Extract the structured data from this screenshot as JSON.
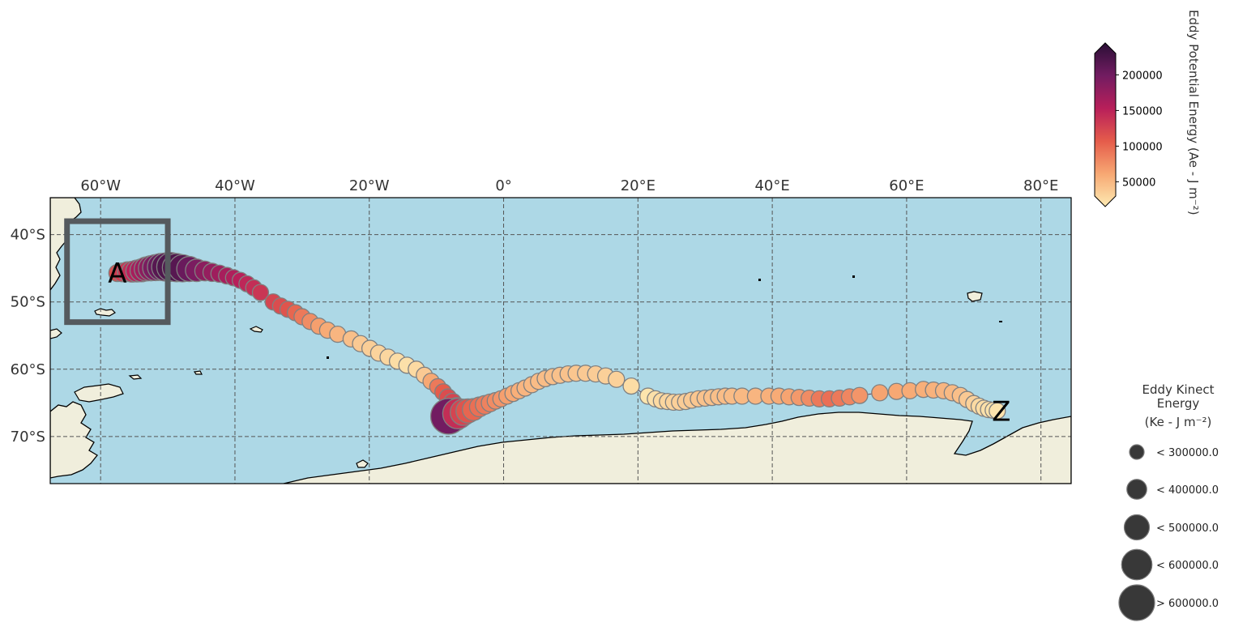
{
  "map": {
    "extent": {
      "lon": [
        -67.5,
        84.5
      ],
      "lat": [
        -77.0,
        -34.5
      ]
    },
    "lon_ticks": [
      {
        "value": -60,
        "label": "60°W"
      },
      {
        "value": -40,
        "label": "40°W"
      },
      {
        "value": -20,
        "label": "20°W"
      },
      {
        "value": 0,
        "label": "0°"
      },
      {
        "value": 20,
        "label": "20°E"
      },
      {
        "value": 40,
        "label": "40°E"
      },
      {
        "value": 60,
        "label": "60°E"
      },
      {
        "value": 80,
        "label": "80°E"
      }
    ],
    "lat_ticks": [
      {
        "value": -40,
        "label": "40°S"
      },
      {
        "value": -50,
        "label": "50°S"
      },
      {
        "value": -60,
        "label": "60°S"
      },
      {
        "value": -70,
        "label": "70°S"
      }
    ],
    "colors": {
      "ocean": "#add8e6",
      "land": "#f0eedc",
      "grid": "#555555",
      "box": "#555a5e",
      "marker_edge": "#808080"
    },
    "start_label": "A",
    "end_label": "Z",
    "region_box": {
      "lon": [
        -65,
        -50
      ],
      "lat": [
        -53,
        -38
      ]
    }
  },
  "colorbar": {
    "label": "Eddy Potential Energy (Ae -  J m⁻²)",
    "range": [
      30000,
      230000
    ],
    "ticks": [
      {
        "value": 50000,
        "label": "50000"
      },
      {
        "value": 100000,
        "label": "100000"
      },
      {
        "value": 150000,
        "label": "150000"
      },
      {
        "value": 200000,
        "label": "200000"
      }
    ],
    "stops": [
      "#fdeab2",
      "#f7a873",
      "#e55c4b",
      "#b81f5a",
      "#721c61",
      "#2a0f36"
    ]
  },
  "size_legend": {
    "title_lines": [
      "Eddy Kinect",
      "Energy",
      "(Ke -  J m⁻²)"
    ],
    "items": [
      {
        "label": "< 300000.0",
        "size": 300000
      },
      {
        "label": "< 400000.0",
        "size": 400000
      },
      {
        "label": "< 500000.0",
        "size": 500000
      },
      {
        "label": "< 600000.0",
        "size": 600000
      },
      {
        "label": "> 600000.0",
        "size": 700000
      }
    ]
  },
  "chart_data": {
    "type": "scatter",
    "x_name": "longitude",
    "y_name": "latitude",
    "points": [
      [
        -57.5,
        -45.7,
        120000,
        350000
      ],
      [
        -56.8,
        -45.6,
        130000,
        380000
      ],
      [
        -56.0,
        -45.5,
        135000,
        400000
      ],
      [
        -55.3,
        -45.5,
        140000,
        420000
      ],
      [
        -54.6,
        -45.4,
        150000,
        440000
      ],
      [
        -53.9,
        -45.3,
        160000,
        460000
      ],
      [
        -53.2,
        -45.1,
        165000,
        480000
      ],
      [
        -52.5,
        -45.0,
        175000,
        500000
      ],
      [
        -51.8,
        -44.9,
        185000,
        520000
      ],
      [
        -51.0,
        -44.8,
        195000,
        540000
      ],
      [
        -50.3,
        -44.8,
        205000,
        560000
      ],
      [
        -49.5,
        -44.8,
        210000,
        570000
      ],
      [
        -48.7,
        -44.9,
        210000,
        560000
      ],
      [
        -47.8,
        -45.0,
        205000,
        540000
      ],
      [
        -46.8,
        -45.1,
        195000,
        500000
      ],
      [
        -45.7,
        -45.3,
        185000,
        450000
      ],
      [
        -44.5,
        -45.4,
        175000,
        400000
      ],
      [
        -43.4,
        -45.6,
        170000,
        370000
      ],
      [
        -42.3,
        -45.8,
        165000,
        350000
      ],
      [
        -41.2,
        -46.1,
        160000,
        340000
      ],
      [
        -40.2,
        -46.4,
        155000,
        330000
      ],
      [
        -39.2,
        -46.8,
        150000,
        330000
      ],
      [
        -38.2,
        -47.3,
        145000,
        330000
      ],
      [
        -37.2,
        -47.9,
        140000,
        330000
      ],
      [
        -36.2,
        -48.6,
        135000,
        330000
      ],
      [
        -34.3,
        -50.0,
        125000,
        330000
      ],
      [
        -33.2,
        -50.6,
        120000,
        330000
      ],
      [
        -32.1,
        -51.1,
        115000,
        330000
      ],
      [
        -31.0,
        -51.6,
        105000,
        330000
      ],
      [
        -30.0,
        -52.2,
        95000,
        330000
      ],
      [
        -28.8,
        -52.9,
        85000,
        330000
      ],
      [
        -27.5,
        -53.6,
        75000,
        330000
      ],
      [
        -26.2,
        -54.2,
        68000,
        330000
      ],
      [
        -24.7,
        -54.8,
        62000,
        330000
      ],
      [
        -22.7,
        -55.5,
        56000,
        330000
      ],
      [
        -21.3,
        -56.2,
        50000,
        330000
      ],
      [
        -19.9,
        -56.9,
        47000,
        330000
      ],
      [
        -18.6,
        -57.6,
        44000,
        330000
      ],
      [
        -17.2,
        -58.2,
        42000,
        330000
      ],
      [
        -15.8,
        -58.8,
        38000,
        330000
      ],
      [
        -14.4,
        -59.4,
        36000,
        330000
      ],
      [
        -13.0,
        -60.0,
        40000,
        330000
      ],
      [
        -11.8,
        -60.9,
        50000,
        330000
      ],
      [
        -10.8,
        -61.8,
        70000,
        330000
      ],
      [
        -9.8,
        -62.6,
        95000,
        330000
      ],
      [
        -9.0,
        -63.4,
        110000,
        340000
      ],
      [
        -8.3,
        -64.2,
        120000,
        350000
      ],
      [
        -7.6,
        -64.9,
        125000,
        360000
      ],
      [
        -7.0,
        -65.6,
        120000,
        380000
      ],
      [
        -6.5,
        -66.2,
        110000,
        400000
      ],
      [
        -7.5,
        -66.8,
        150000,
        650000
      ],
      [
        -8.2,
        -67.0,
        190000,
        700000
      ],
      [
        -6.8,
        -66.6,
        140000,
        600000
      ],
      [
        -6.0,
        -66.4,
        125000,
        520000
      ],
      [
        -5.3,
        -66.2,
        115000,
        480000
      ],
      [
        -4.5,
        -66.0,
        105000,
        440000
      ],
      [
        -3.6,
        -65.6,
        100000,
        400000
      ],
      [
        -2.8,
        -65.3,
        95000,
        380000
      ],
      [
        -2.0,
        -65.0,
        90000,
        360000
      ],
      [
        -1.2,
        -64.7,
        85000,
        340000
      ],
      [
        -0.4,
        -64.4,
        80000,
        330000
      ],
      [
        0.5,
        -64.0,
        75000,
        330000
      ],
      [
        1.4,
        -63.6,
        70000,
        330000
      ],
      [
        2.3,
        -63.2,
        66000,
        330000
      ],
      [
        3.2,
        -62.8,
        62000,
        330000
      ],
      [
        4.2,
        -62.3,
        60000,
        330000
      ],
      [
        5.2,
        -61.8,
        58000,
        330000
      ],
      [
        6.2,
        -61.4,
        57000,
        330000
      ],
      [
        7.3,
        -61.1,
        56000,
        330000
      ],
      [
        8.4,
        -60.9,
        55000,
        330000
      ],
      [
        9.6,
        -60.7,
        54000,
        330000
      ],
      [
        10.8,
        -60.6,
        52000,
        330000
      ],
      [
        12.2,
        -60.6,
        50000,
        330000
      ],
      [
        13.7,
        -60.7,
        48000,
        330000
      ],
      [
        15.2,
        -61.0,
        46000,
        330000
      ],
      [
        16.8,
        -61.5,
        45000,
        330000
      ],
      [
        19.0,
        -62.5,
        38000,
        330000
      ],
      [
        21.5,
        -64.0,
        33000,
        330000
      ],
      [
        22.6,
        -64.4,
        36000,
        330000
      ],
      [
        23.5,
        -64.7,
        40000,
        330000
      ],
      [
        24.4,
        -64.8,
        42000,
        330000
      ],
      [
        25.3,
        -64.9,
        44000,
        330000
      ],
      [
        26.2,
        -64.9,
        46000,
        330000
      ],
      [
        27.1,
        -64.8,
        48000,
        330000
      ],
      [
        28.0,
        -64.6,
        50000,
        330000
      ],
      [
        29.0,
        -64.4,
        52000,
        330000
      ],
      [
        30.0,
        -64.3,
        54000,
        330000
      ],
      [
        31.0,
        -64.2,
        55000,
        330000
      ],
      [
        32.0,
        -64.1,
        56000,
        330000
      ],
      [
        33.0,
        -64.0,
        57000,
        330000
      ],
      [
        34.0,
        -64.0,
        58000,
        330000
      ],
      [
        35.5,
        -64.0,
        60000,
        330000
      ],
      [
        37.5,
        -64.0,
        62000,
        330000
      ],
      [
        39.5,
        -64.0,
        65000,
        330000
      ],
      [
        41.0,
        -64.0,
        68000,
        330000
      ],
      [
        42.5,
        -64.1,
        72000,
        330000
      ],
      [
        44.0,
        -64.2,
        78000,
        330000
      ],
      [
        45.5,
        -64.3,
        85000,
        330000
      ],
      [
        47.0,
        -64.4,
        95000,
        330000
      ],
      [
        48.5,
        -64.4,
        100000,
        330000
      ],
      [
        50.0,
        -64.3,
        95000,
        330000
      ],
      [
        51.5,
        -64.1,
        88000,
        330000
      ],
      [
        53.0,
        -63.9,
        80000,
        330000
      ],
      [
        56.0,
        -63.5,
        72000,
        330000
      ],
      [
        58.5,
        -63.3,
        70000,
        330000
      ],
      [
        60.5,
        -63.2,
        68000,
        330000
      ],
      [
        62.5,
        -63.0,
        66000,
        330000
      ],
      [
        64.0,
        -63.1,
        64000,
        330000
      ],
      [
        65.5,
        -63.2,
        62000,
        330000
      ],
      [
        66.8,
        -63.5,
        60000,
        330000
      ],
      [
        68.0,
        -63.9,
        56000,
        330000
      ],
      [
        69.0,
        -64.5,
        50000,
        330000
      ],
      [
        70.0,
        -65.1,
        45000,
        330000
      ],
      [
        70.8,
        -65.5,
        40000,
        330000
      ],
      [
        71.5,
        -65.8,
        38000,
        330000
      ],
      [
        72.2,
        -66.0,
        36000,
        330000
      ],
      [
        72.9,
        -66.1,
        35000,
        330000
      ],
      [
        73.5,
        -66.2,
        34000,
        330000
      ]
    ]
  }
}
